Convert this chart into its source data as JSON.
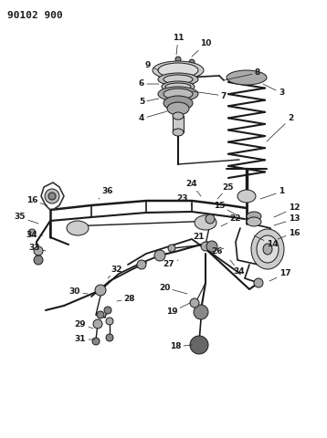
{
  "title": "90102 900",
  "bg_color": "#ffffff",
  "fig_width": 3.58,
  "fig_height": 4.8,
  "dpi": 100,
  "lc": "#1a1a1a",
  "title_fontsize": 8,
  "label_fontsize": 6.5
}
